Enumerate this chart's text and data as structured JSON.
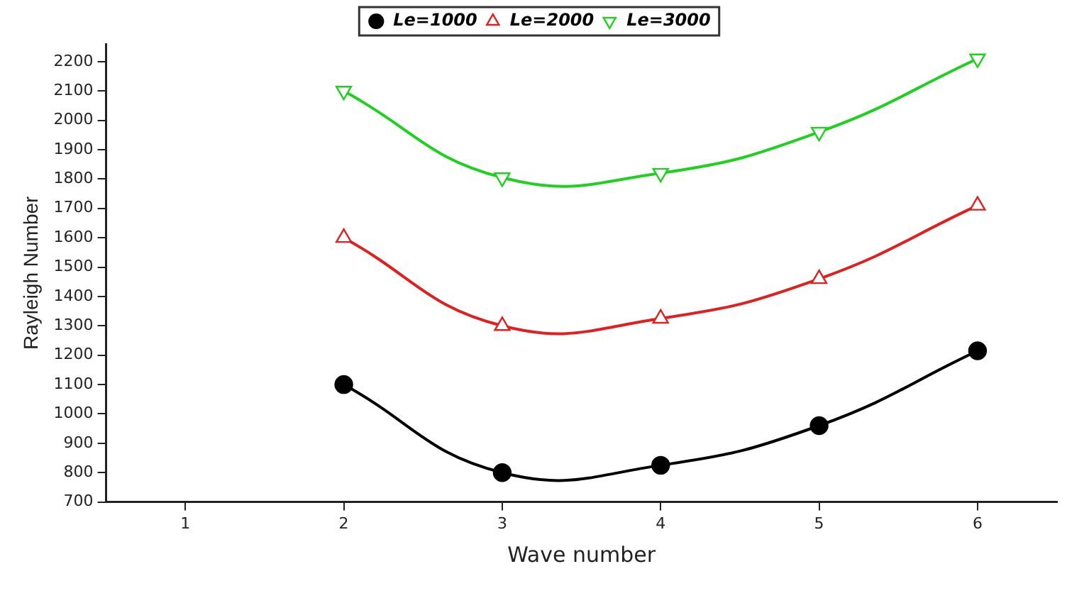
{
  "chart_data": {
    "type": "line",
    "xlabel": "Wave number",
    "ylabel": "Rayleigh Number",
    "x": [
      2,
      3,
      4,
      5,
      6
    ],
    "series": [
      {
        "name": "Le=1000",
        "color": "#000000",
        "marker": "circle",
        "values": [
          1100,
          800,
          825,
          960,
          1215
        ]
      },
      {
        "name": "Le=2000",
        "color": "#e02020",
        "marker": "triangle",
        "values": [
          1600,
          1300,
          1325,
          1460,
          1710
        ]
      },
      {
        "name": "Le=3000",
        "color": "#20d020",
        "marker": "triangle-down",
        "values": [
          2100,
          1805,
          1820,
          1960,
          2210
        ]
      }
    ],
    "xlim": [
      0.5,
      6.5
    ],
    "xticks": [
      1,
      2,
      3,
      4,
      5,
      6
    ],
    "ylim": [
      700,
      2260
    ],
    "yticks": [
      700,
      800,
      900,
      1000,
      1100,
      1200,
      1300,
      1400,
      1500,
      1600,
      1700,
      1800,
      1900,
      2000,
      2100,
      2200
    ],
    "legend": "top",
    "grid": false
  }
}
